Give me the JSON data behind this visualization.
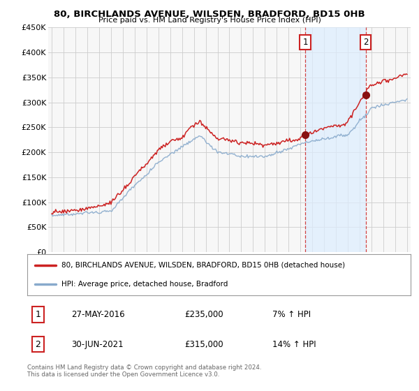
{
  "title": "80, BIRCHLANDS AVENUE, WILSDEN, BRADFORD, BD15 0HB",
  "subtitle": "Price paid vs. HM Land Registry's House Price Index (HPI)",
  "sale1_date": "27-MAY-2016",
  "sale1_price": 235000,
  "sale1_x": 2016.4,
  "sale1_label": "7% ↑ HPI",
  "sale2_date": "30-JUN-2021",
  "sale2_price": 315000,
  "sale2_x": 2021.5,
  "sale2_label": "14% ↑ HPI",
  "legend_line1": "80, BIRCHLANDS AVENUE, WILSDEN, BRADFORD, BD15 0HB (detached house)",
  "legend_line2": "HPI: Average price, detached house, Bradford",
  "footer": "Contains HM Land Registry data © Crown copyright and database right 2024.\nThis data is licensed under the Open Government Licence v3.0.",
  "line_color_red": "#cc2222",
  "line_color_blue": "#88aacc",
  "shade_color": "#ddeeff",
  "bg_color": "#ffffff",
  "plot_bg_color": "#f7f7f7",
  "grid_color": "#cccccc",
  "sale_marker_color": "#881111",
  "annotation_box_color": "#cc2222",
  "ylim_min": 0,
  "ylim_max": 450000,
  "yticks": [
    0,
    50000,
    100000,
    150000,
    200000,
    250000,
    300000,
    350000,
    400000,
    450000
  ],
  "ytick_labels": [
    "£0",
    "£50K",
    "£100K",
    "£150K",
    "£200K",
    "£250K",
    "£300K",
    "£350K",
    "£400K",
    "£450K"
  ],
  "xlim_min": 1994.7,
  "xlim_max": 2025.3
}
